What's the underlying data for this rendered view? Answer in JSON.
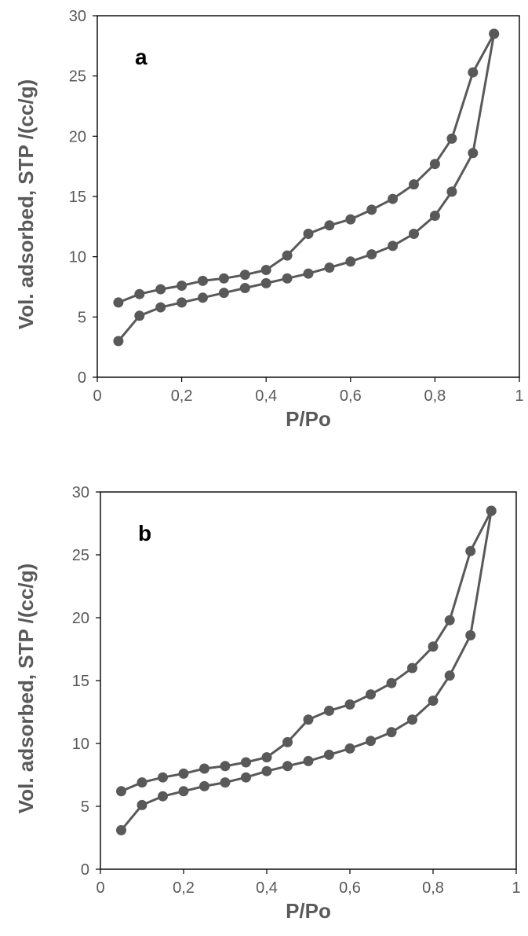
{
  "chart_data": [
    {
      "type": "line",
      "panel_label": "a",
      "xlabel": "P/Po",
      "ylabel": "Vol. adsorbed, STP /(cc/g)",
      "xlim": [
        0,
        1
      ],
      "ylim": [
        0,
        30
      ],
      "x_ticks": [
        "0",
        "0,2",
        "0,4",
        "0,6",
        "0,8",
        "1"
      ],
      "y_ticks": [
        "0",
        "5",
        "10",
        "15",
        "20",
        "25",
        "30"
      ],
      "grid": false,
      "legend": "none",
      "line_color": "#595959",
      "series": [
        {
          "x": [
            0.05,
            0.1,
            0.15,
            0.2,
            0.25,
            0.3,
            0.35,
            0.4,
            0.45,
            0.5,
            0.55,
            0.6,
            0.65,
            0.7,
            0.75,
            0.8,
            0.84,
            0.89,
            0.94
          ],
          "values": [
            3.0,
            5.1,
            5.8,
            6.2,
            6.6,
            7.0,
            7.4,
            7.8,
            8.2,
            8.6,
            9.1,
            9.6,
            10.2,
            10.9,
            11.9,
            13.4,
            15.4,
            18.6,
            28.5
          ]
        },
        {
          "x": [
            0.94,
            0.89,
            0.84,
            0.8,
            0.75,
            0.7,
            0.65,
            0.6,
            0.55,
            0.5,
            0.45,
            0.4,
            0.35,
            0.3,
            0.25,
            0.2,
            0.15,
            0.1,
            0.05
          ],
          "values": [
            28.5,
            25.3,
            19.8,
            17.7,
            16.0,
            14.8,
            13.9,
            13.1,
            12.6,
            11.9,
            10.1,
            8.9,
            8.5,
            8.2,
            8.0,
            7.6,
            7.3,
            6.9,
            6.2
          ]
        }
      ]
    },
    {
      "type": "line",
      "panel_label": "b",
      "xlabel": "P/Po",
      "ylabel": "Vol. adsorbed, STP /(cc/g)",
      "xlim": [
        0,
        1
      ],
      "ylim": [
        0,
        30
      ],
      "x_ticks": [
        "0",
        "0,2",
        "0,4",
        "0,6",
        "0,8",
        "1"
      ],
      "y_ticks": [
        "0",
        "5",
        "10",
        "15",
        "20",
        "25",
        "30"
      ],
      "grid": false,
      "legend": "none",
      "line_color": "#595959",
      "series": [
        {
          "x": [
            0.05,
            0.1,
            0.15,
            0.2,
            0.25,
            0.3,
            0.35,
            0.4,
            0.45,
            0.5,
            0.55,
            0.6,
            0.65,
            0.7,
            0.75,
            0.8,
            0.84,
            0.89,
            0.94
          ],
          "values": [
            3.1,
            5.1,
            5.8,
            6.2,
            6.6,
            6.9,
            7.3,
            7.8,
            8.2,
            8.6,
            9.1,
            9.6,
            10.2,
            10.9,
            11.9,
            13.4,
            15.4,
            18.6,
            28.5
          ]
        },
        {
          "x": [
            0.94,
            0.89,
            0.84,
            0.8,
            0.75,
            0.7,
            0.65,
            0.6,
            0.55,
            0.5,
            0.45,
            0.4,
            0.35,
            0.3,
            0.25,
            0.2,
            0.15,
            0.1,
            0.05
          ],
          "values": [
            28.5,
            25.3,
            19.8,
            17.7,
            16.0,
            14.8,
            13.9,
            13.1,
            12.6,
            11.9,
            10.1,
            8.9,
            8.5,
            8.2,
            8.0,
            7.6,
            7.3,
            6.9,
            6.2
          ]
        }
      ]
    }
  ]
}
